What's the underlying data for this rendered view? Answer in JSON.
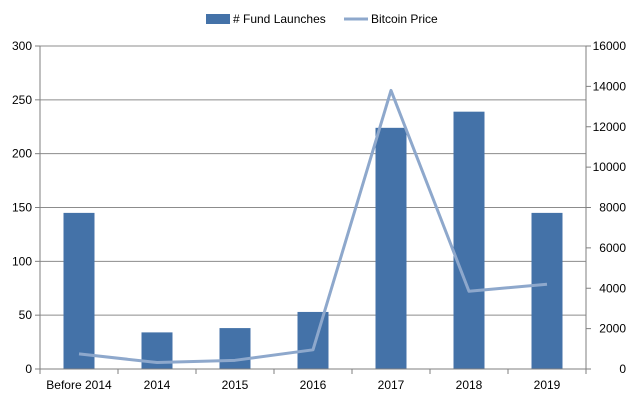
{
  "chart_data": {
    "type": "bar",
    "categories": [
      "Before 2014",
      "2014",
      "2015",
      "2016",
      "2017",
      "2018",
      "2019"
    ],
    "series": [
      {
        "name": "# Fund Launches",
        "type": "bar",
        "axis": "left",
        "color": "#4472a8",
        "values": [
          145,
          34,
          38,
          53,
          224,
          239,
          145
        ]
      },
      {
        "name": "Bitcoin Price",
        "type": "line",
        "axis": "right",
        "color": "#8ea8cc",
        "values": [
          750,
          320,
          430,
          950,
          13800,
          3850,
          4200
        ]
      }
    ],
    "y_left": {
      "min": 0,
      "max": 300,
      "ticks": [
        0,
        50,
        100,
        150,
        200,
        250,
        300
      ]
    },
    "y_right": {
      "min": 0,
      "max": 16000,
      "ticks": [
        0,
        2000,
        4000,
        6000,
        8000,
        10000,
        12000,
        14000,
        16000
      ]
    },
    "grid": true,
    "legend": "top-center"
  }
}
